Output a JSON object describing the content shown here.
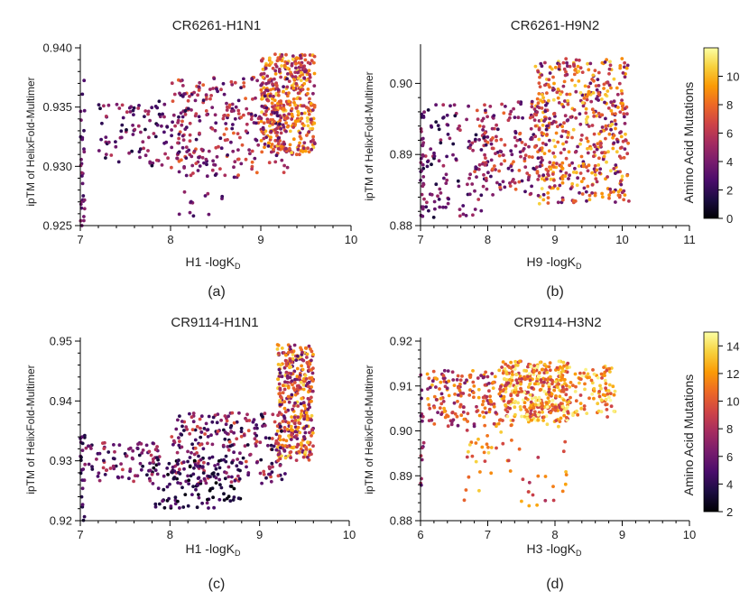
{
  "colorbar_label": "Amino Acid Mutations",
  "colormap": [
    "#000004",
    "#1b0c41",
    "#4a0c6b",
    "#781c6d",
    "#a52c60",
    "#cf4446",
    "#ed6925",
    "#fb9b06",
    "#f7d13d",
    "#fcffa4"
  ],
  "colorbars": [
    {
      "min": 0,
      "max": 12,
      "ticks": [
        "0",
        "2",
        "4",
        "6",
        "8",
        "10"
      ]
    },
    {
      "min": 2,
      "max": 15,
      "ticks": [
        "2",
        "4",
        "6",
        "8",
        "10",
        "12",
        "14"
      ]
    }
  ],
  "chart_data": [
    {
      "type": "scatter",
      "title": "CR6261-H1N1",
      "panel_label": "(a)",
      "xlabel": "H1 -logK",
      "xlabel_sub": "D",
      "ylabel": "ipTM of HelixFold-Multimer",
      "xlim": [
        7,
        10
      ],
      "ylim": [
        0.925,
        0.94
      ],
      "xticks": [
        "7",
        "8",
        "9",
        "10"
      ],
      "yticks": [
        "0.925",
        "0.930",
        "0.935",
        "0.940"
      ],
      "color_range": [
        0,
        12
      ],
      "clusters": [
        {
          "n": 420,
          "x": [
            9.0,
            9.6
          ],
          "y": [
            0.931,
            0.9395
          ],
          "c": [
            4,
            11
          ]
        },
        {
          "n": 280,
          "x": [
            8.0,
            9.3
          ],
          "y": [
            0.929,
            0.9375
          ],
          "c": [
            2,
            8
          ]
        },
        {
          "n": 110,
          "x": [
            7.2,
            8.2
          ],
          "y": [
            0.93,
            0.9355
          ],
          "c": [
            1,
            6
          ]
        },
        {
          "n": 30,
          "x": [
            7.0,
            7.05
          ],
          "y": [
            0.925,
            0.938
          ],
          "c": [
            2,
            5
          ]
        },
        {
          "n": 12,
          "x": [
            8.0,
            8.7
          ],
          "y": [
            0.9258,
            0.9285
          ],
          "c": [
            2,
            5
          ]
        }
      ]
    },
    {
      "type": "scatter",
      "title": "CR6261-H9N2",
      "panel_label": "(b)",
      "xlabel": "H9 -logK",
      "xlabel_sub": "D",
      "ylabel": "ipTM of HelixFold-Multimer",
      "xlim": [
        7,
        11
      ],
      "ylim": [
        0.88,
        0.905
      ],
      "xticks": [
        "7",
        "8",
        "9",
        "10",
        "11"
      ],
      "yticks": [
        "0.88",
        "0.89",
        "0.90"
      ],
      "color_range": [
        0,
        12
      ],
      "clusters": [
        {
          "n": 520,
          "x": [
            8.7,
            10.1
          ],
          "y": [
            0.883,
            0.9035
          ],
          "c": [
            3,
            11
          ]
        },
        {
          "n": 180,
          "x": [
            7.8,
            8.9
          ],
          "y": [
            0.884,
            0.8975
          ],
          "c": [
            2,
            8
          ]
        },
        {
          "n": 110,
          "x": [
            7.0,
            8.0
          ],
          "y": [
            0.881,
            0.897
          ],
          "c": [
            1,
            6
          ]
        },
        {
          "n": 25,
          "x": [
            7.0,
            7.05
          ],
          "y": [
            0.88,
            0.896
          ],
          "c": [
            2,
            5
          ]
        }
      ]
    },
    {
      "type": "scatter",
      "title": "CR9114-H1N1",
      "panel_label": "(c)",
      "xlabel": "H1 -logK",
      "xlabel_sub": "D",
      "ylabel": "ipTM of HelixFold-Multimer",
      "xlim": [
        7,
        10
      ],
      "ylim": [
        0.92,
        0.95
      ],
      "xticks": [
        "7",
        "8",
        "9",
        "10"
      ],
      "yticks": [
        "0.92",
        "0.93",
        "0.94",
        "0.95"
      ],
      "color_range": [
        2,
        15
      ],
      "clusters": [
        {
          "n": 380,
          "x": [
            9.2,
            9.6
          ],
          "y": [
            0.93,
            0.9495
          ],
          "c": [
            5,
            14
          ]
        },
        {
          "n": 240,
          "x": [
            8.0,
            9.3
          ],
          "y": [
            0.926,
            0.938
          ],
          "c": [
            3,
            10
          ]
        },
        {
          "n": 120,
          "x": [
            7.8,
            8.8
          ],
          "y": [
            0.922,
            0.9305
          ],
          "c": [
            2,
            6
          ]
        },
        {
          "n": 90,
          "x": [
            7.0,
            7.9
          ],
          "y": [
            0.9265,
            0.933
          ],
          "c": [
            3,
            9
          ]
        },
        {
          "n": 20,
          "x": [
            7.0,
            7.05
          ],
          "y": [
            0.92,
            0.935
          ],
          "c": [
            3,
            6
          ]
        }
      ]
    },
    {
      "type": "scatter",
      "title": "CR9114-H3N2",
      "panel_label": "(d)",
      "xlabel": "H3 -logK",
      "xlabel_sub": "D",
      "ylabel": "ipTM of HelixFold-Multimer",
      "xlim": [
        6,
        10
      ],
      "ylim": [
        0.88,
        0.92
      ],
      "xticks": [
        "6",
        "7",
        "8",
        "9",
        "10"
      ],
      "yticks": [
        "0.88",
        "0.89",
        "0.90",
        "0.91",
        "0.92"
      ],
      "color_range": [
        2,
        15
      ],
      "clusters": [
        {
          "n": 380,
          "x": [
            7.2,
            8.2
          ],
          "y": [
            0.902,
            0.9155
          ],
          "c": [
            8,
            15
          ]
        },
        {
          "n": 170,
          "x": [
            6.1,
            7.2
          ],
          "y": [
            0.901,
            0.9135
          ],
          "c": [
            6,
            13
          ]
        },
        {
          "n": 110,
          "x": [
            8.1,
            8.9
          ],
          "y": [
            0.903,
            0.9145
          ],
          "c": [
            9,
            15
          ]
        },
        {
          "n": 55,
          "x": [
            6.6,
            8.3
          ],
          "y": [
            0.883,
            0.9015
          ],
          "c": [
            8,
            14
          ]
        },
        {
          "n": 15,
          "x": [
            6.0,
            6.05
          ],
          "y": [
            0.881,
            0.9135
          ],
          "c": [
            5,
            9
          ]
        }
      ]
    }
  ]
}
